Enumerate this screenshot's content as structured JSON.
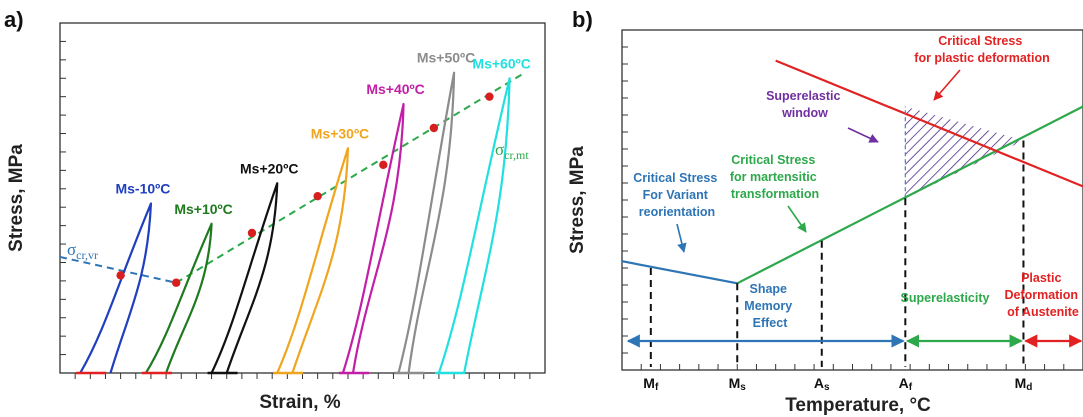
{
  "chart_data": [
    {
      "panel_label": "a)",
      "type": "line",
      "xlabel": "Strain, %",
      "ylabel": "Stress, MPa",
      "grid": false,
      "loops": [
        {
          "name": "Ms-10ºC",
          "color": "#1f3fbf",
          "label_color": "#1f3fbf",
          "start": [
            2,
            0
          ],
          "peak": [
            9,
            9.2
          ],
          "end": [
            5,
            0
          ],
          "bulge": 0.5,
          "marker": [
            6,
            5.3
          ]
        },
        {
          "name": "Ms+10ºC",
          "color": "#1f7a1f",
          "label_color": "#1f7a1f",
          "start": [
            8.5,
            0
          ],
          "peak": [
            15,
            8.1
          ],
          "end": [
            10.5,
            0
          ],
          "bulge": 0.6,
          "marker": [
            11.5,
            4.9
          ]
        },
        {
          "name": "Ms+20ºC",
          "color": "#111111",
          "label_color": "#111111",
          "start": [
            15,
            0
          ],
          "peak": [
            21.5,
            10.3
          ],
          "end": [
            16.5,
            0
          ],
          "bulge": 0.8,
          "marker": [
            19,
            7.6
          ]
        },
        {
          "name": "Ms+30ºC",
          "color": "#f0a51e",
          "label_color": "#f0a51e",
          "start": [
            21.5,
            0
          ],
          "peak": [
            28.5,
            12.2
          ],
          "end": [
            23,
            0
          ],
          "bulge": 0.9,
          "marker": [
            25.5,
            9.6
          ]
        },
        {
          "name": "Ms+40ºC",
          "color": "#c21fa7",
          "label_color": "#c21fa7",
          "start": [
            28,
            0
          ],
          "peak": [
            34,
            14.6
          ],
          "end": [
            29,
            0
          ],
          "bulge": 0.5,
          "marker": [
            32,
            11.3
          ]
        },
        {
          "name": "Ms+50ºC",
          "color": "#8c8c8c",
          "label_color": "#8c8c8c",
          "start": [
            33.5,
            0
          ],
          "peak": [
            39,
            16.3
          ],
          "end": [
            34.5,
            0
          ],
          "bulge": 0.5,
          "marker": [
            37,
            13.3
          ]
        },
        {
          "name": "Ms+60ºC",
          "color": "#22e0e0",
          "label_color": "#22e0e0",
          "start": [
            37.5,
            0
          ],
          "peak": [
            44.5,
            16
          ],
          "end": [
            40,
            0
          ],
          "bulge": 0.6,
          "marker": [
            42.5,
            15
          ]
        }
      ],
      "critical_lines": [
        {
          "name": "σcr,vr",
          "color": "#2e75b6",
          "from": [
            0,
            6.3
          ],
          "to": [
            11.5,
            4.9
          ]
        },
        {
          "name": "σcr,mt",
          "color": "#2da84a",
          "from": [
            11.5,
            4.9
          ],
          "to": [
            46,
            16.3
          ]
        }
      ],
      "xlim": [
        0,
        48
      ],
      "ylim": [
        0,
        19
      ]
    },
    {
      "panel_label": "b)",
      "type": "line",
      "xlabel": "Temperature, °C",
      "ylabel": "Stress, MPa",
      "grid": false,
      "series": [
        {
          "name": "Critical Stress For Variant reorientation",
          "color": "#2e75b6",
          "points": [
            [
              0,
              6.4
            ],
            [
              12,
              5.1
            ]
          ]
        },
        {
          "name": "Critical Stress for martensitic transformation",
          "color": "#2da84a",
          "points": [
            [
              12,
              5.1
            ],
            [
              48,
              15.5
            ]
          ]
        },
        {
          "name": "Critical Stress for plastic deformation",
          "color": "#e22222",
          "points": [
            [
              16,
              18.2
            ],
            [
              48,
              10.8
            ]
          ]
        }
      ],
      "temperature_marks": [
        {
          "label": "Mf",
          "base": "M",
          "sub": "f",
          "x": 3,
          "y": 6.0
        },
        {
          "label": "Ms",
          "base": "M",
          "sub": "s",
          "x": 12,
          "y": 5.1
        },
        {
          "label": "As",
          "base": "A",
          "sub": "s",
          "x": 20.8,
          "y": 7.6
        },
        {
          "label": "Af",
          "base": "A",
          "sub": "f",
          "x": 29.5,
          "y": 10.1
        },
        {
          "label": "Md",
          "base": "M",
          "sub": "d",
          "x": 41.8,
          "y": 13.5
        }
      ],
      "superelastic_window": {
        "x": [
          29.5,
          41.8
        ],
        "lower": [
          10.1,
          13.5
        ],
        "upper": [
          15.5,
          13.5
        ]
      },
      "regions": [
        {
          "name": "Shape Memory Effect",
          "lines": [
            "Shape",
            "Memory",
            "Effect"
          ],
          "color": "#2e75b6",
          "from": 0,
          "to": 29.5
        },
        {
          "name": "Superelasticity",
          "lines": [
            "Superelasticity"
          ],
          "color": "#2da84a",
          "from": 29.5,
          "to": 41.8
        },
        {
          "name": "Plastic Deformation of Austenite",
          "lines": [
            "Plastic",
            "Deformation",
            "of Austenite"
          ],
          "color": "#e22222",
          "from": 41.8,
          "to": 48
        }
      ],
      "annotations": [
        {
          "name": "Critical Stress for plastic deformation",
          "lines": [
            "Critical Stress",
            "for plastic deformation"
          ],
          "color": "#e22222"
        },
        {
          "name": "Superelastic window",
          "lines": [
            "Superelastic",
            "window"
          ],
          "color": "#7030a0"
        },
        {
          "name": "Critical Stress for martensitic transformation",
          "lines": [
            "Critical Stress",
            "for martensitic",
            "transformation"
          ],
          "color": "#2da84a"
        },
        {
          "name": "Critical Stress For Variant reorientation",
          "lines": [
            "Critical Stress",
            "For Variant",
            "reorientation"
          ],
          "color": "#2e75b6"
        }
      ],
      "xlim": [
        0,
        48
      ],
      "ylim": [
        0,
        20
      ]
    }
  ]
}
